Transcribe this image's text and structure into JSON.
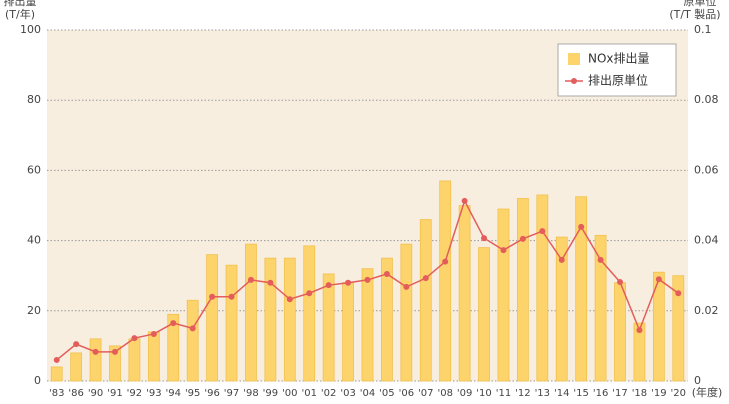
{
  "chart_data": {
    "type": "bar_line",
    "y_label": [
      "排出量",
      "(T/年)"
    ],
    "y2_label": [
      "原単位",
      "(T/T 製品)"
    ],
    "x_label": "(年度)",
    "categories": [
      "'83",
      "'86",
      "'90",
      "'91",
      "'92",
      "'93",
      "'94",
      "'95",
      "'96",
      "'97",
      "'98",
      "'99",
      "'00",
      "'01",
      "'02",
      "'03",
      "'04",
      "'05",
      "'06",
      "'07",
      "'08",
      "'09",
      "'10",
      "'11",
      "'12",
      "'13",
      "'14",
      "'15",
      "'16",
      "'17",
      "'18",
      "'19",
      "'20"
    ],
    "series": [
      {
        "name": "NOx排出量",
        "color": "#fdd46b",
        "type": "bar",
        "values": [
          4,
          8,
          12,
          10,
          12,
          14,
          19,
          23,
          36,
          33,
          39,
          35,
          35,
          38.5,
          30.5,
          28,
          32,
          35,
          39,
          46,
          57,
          50,
          38,
          49,
          52,
          53,
          41,
          52.5,
          41.5,
          28,
          16.5,
          31,
          30
        ]
      },
      {
        "name": "排出原単位",
        "color": "#e35d5b",
        "type": "line",
        "axis": "y2",
        "values": [
          0.006,
          0.0105,
          0.0083,
          0.0083,
          0.0122,
          0.0134,
          0.0165,
          0.015,
          0.024,
          0.024,
          0.0288,
          0.028,
          0.0233,
          0.025,
          0.0273,
          0.028,
          0.0288,
          0.0305,
          0.0268,
          0.0293,
          0.034,
          0.0513,
          0.0407,
          0.0373,
          0.0405,
          0.0427,
          0.0345,
          0.0439,
          0.0345,
          0.0282,
          0.0145,
          0.029,
          0.025
        ]
      }
    ],
    "ylim": [
      0,
      100
    ],
    "yticks": [
      0,
      20,
      40,
      60,
      80,
      100
    ],
    "y2lim": [
      0,
      0.1
    ],
    "y2ticks": [
      0,
      0.02,
      0.04,
      0.06,
      0.08,
      0.1
    ],
    "grid": true,
    "legend": "top-right"
  }
}
